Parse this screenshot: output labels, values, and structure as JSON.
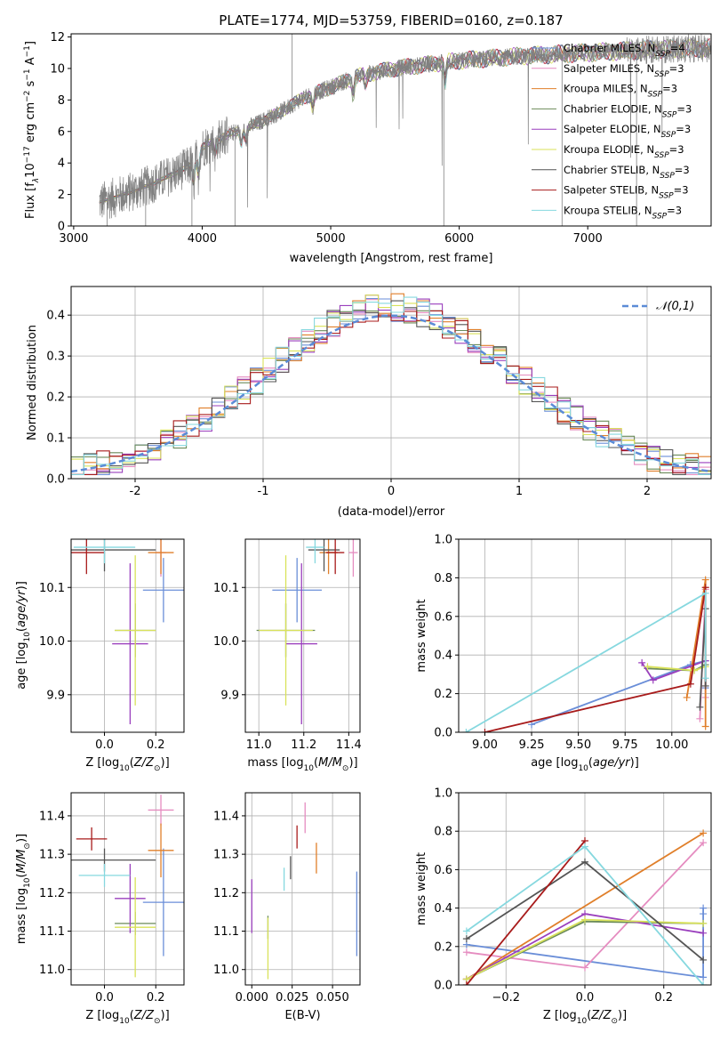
{
  "figure_title": "PLATE=1774, MJD=53759, FIBERID=0160, z=0.187",
  "colors": {
    "Chabrier MILES": "#6a8ed8",
    "Salpeter MILES": "#e58cc0",
    "Kroupa MILES": "#e07f2a",
    "Chabrier ELODIE": "#6b8b5a",
    "Salpeter ELODIE": "#9a3fbd",
    "Kroupa ELODIE": "#d9e25a",
    "Chabrier STELIB": "#555555",
    "Salpeter STELIB": "#a81b1b",
    "Kroupa STELIB": "#86d8df",
    "normal": "#5b8bd6"
  },
  "chart_data": [
    {
      "id": "spectrum",
      "type": "line",
      "title": "PLATE=1774, MJD=53759, FIBERID=0160, z=0.187",
      "xlabel": "wavelength [Angstrom, rest frame]",
      "ylabel": "Flux [fλ10⁻¹⁷ erg cm⁻² s⁻¹ A⁻¹]",
      "xlim": [
        2980,
        7960
      ],
      "ylim": [
        0,
        12.2
      ],
      "xticks": [
        3000,
        4000,
        5000,
        6000,
        7000
      ],
      "yticks": [
        0,
        2,
        4,
        6,
        8,
        10,
        12
      ],
      "legend": [
        "Chabrier MILES, N_SSP=4",
        "Salpeter MILES, N_SSP=3",
        "Kroupa MILES, N_SSP=3",
        "Chabrier ELODIE, N_SSP=3",
        "Salpeter ELODIE, N_SSP=3",
        "Kroupa ELODIE, N_SSP=3",
        "Chabrier STELIB, N_SSP=3",
        "Salpeter STELIB, N_SSP=3",
        "Kroupa STELIB, N_SSP=3"
      ],
      "legend_position": "upper-right",
      "x_range_data": [
        3200,
        7960
      ],
      "continuum": {
        "x": [
          3200,
          3500,
          3700,
          3900,
          4000,
          4200,
          4400,
          4600,
          4800,
          5000,
          5200,
          5500,
          6000,
          6500,
          7000,
          7500,
          7960
        ],
        "y": [
          1.5,
          2.3,
          3.0,
          3.8,
          5.0,
          5.8,
          6.4,
          7.2,
          8.2,
          8.8,
          9.5,
          10.0,
          10.5,
          10.8,
          11.0,
          11.2,
          11.3
        ]
      }
    },
    {
      "id": "residuals",
      "type": "histogram",
      "xlabel": "(data-model)/error",
      "ylabel": "Normed distribution",
      "xlim": [
        -2.5,
        2.5
      ],
      "ylim": [
        0,
        0.47
      ],
      "xticks": [
        -2,
        -1,
        0,
        1,
        2
      ],
      "yticks": [
        0.0,
        0.1,
        0.2,
        0.3,
        0.4
      ],
      "bin_width": 0.1,
      "reference": {
        "name": "𝒩(0,1)",
        "type": "gaussian",
        "mean": 0,
        "sigma": 1
      },
      "legend_position": "upper-right",
      "grid": true
    },
    {
      "id": "age-vs-z",
      "type": "scatter",
      "xlabel": "Z [log10(Z/Z⊙)]",
      "ylabel": "age [log10(age/yr)]",
      "xlim": [
        -0.13,
        0.31
      ],
      "ylim": [
        9.83,
        10.19
      ],
      "xticks": [
        0.0,
        0.2
      ],
      "yticks": [
        9.9,
        10.0,
        10.1
      ],
      "points": [
        {
          "model": "Chabrier MILES",
          "x": 0.23,
          "y": 10.095,
          "xerr": 0.08,
          "yerr": 0.06
        },
        {
          "model": "Salpeter MILES",
          "x": 0.22,
          "y": 10.165,
          "xerr": 0.02,
          "yerr": 0.045
        },
        {
          "model": "Kroupa MILES",
          "x": 0.22,
          "y": 10.165,
          "xerr": 0.05,
          "yerr": 0.04
        },
        {
          "model": "Chabrier ELODIE",
          "x": 0.12,
          "y": 10.02,
          "xerr": 0.08,
          "yerr": 0.05
        },
        {
          "model": "Salpeter ELODIE",
          "x": 0.1,
          "y": 9.995,
          "xerr": 0.07,
          "yerr": 0.15
        },
        {
          "model": "Kroupa ELODIE",
          "x": 0.12,
          "y": 10.02,
          "xerr": 0.08,
          "yerr": 0.14
        },
        {
          "model": "Chabrier STELIB",
          "x": 0.0,
          "y": 10.17,
          "xerr": 0.2,
          "yerr": 0.04
        },
        {
          "model": "Salpeter STELIB",
          "x": -0.07,
          "y": 10.165,
          "xerr": 0.07,
          "yerr": 0.04
        },
        {
          "model": "Kroupa STELIB",
          "x": 0.0,
          "y": 10.175,
          "xerr": 0.12,
          "yerr": 0.03
        }
      ]
    },
    {
      "id": "age-vs-mass",
      "type": "scatter",
      "xlabel": "mass [log10(M/M⊙)]",
      "ylabel": "",
      "xlim": [
        10.94,
        11.45
      ],
      "ylim": [
        9.83,
        10.19
      ],
      "xticks": [
        11.0,
        11.2,
        11.4
      ],
      "yticks": [
        9.9,
        10.0,
        10.1
      ],
      "points": [
        {
          "model": "Chabrier MILES",
          "x": 11.17,
          "y": 10.095,
          "xerr": 0.11,
          "yerr": 0.06
        },
        {
          "model": "Salpeter MILES",
          "x": 11.42,
          "y": 10.165,
          "xerr": 0.02,
          "yerr": 0.045
        },
        {
          "model": "Kroupa MILES",
          "x": 11.31,
          "y": 10.165,
          "xerr": 0.04,
          "yerr": 0.04
        },
        {
          "model": "Chabrier ELODIE",
          "x": 11.12,
          "y": 10.02,
          "xerr": 0.13,
          "yerr": 0.05
        },
        {
          "model": "Salpeter ELODIE",
          "x": 11.19,
          "y": 9.995,
          "xerr": 0.07,
          "yerr": 0.15
        },
        {
          "model": "Kroupa ELODIE",
          "x": 11.12,
          "y": 10.02,
          "xerr": 0.12,
          "yerr": 0.14
        },
        {
          "model": "Chabrier STELIB",
          "x": 11.29,
          "y": 10.17,
          "xerr": 0.07,
          "yerr": 0.04
        },
        {
          "model": "Salpeter STELIB",
          "x": 11.34,
          "y": 10.165,
          "xerr": 0.04,
          "yerr": 0.04
        },
        {
          "model": "Kroupa STELIB",
          "x": 11.25,
          "y": 10.175,
          "xerr": 0.04,
          "yerr": 0.03
        }
      ]
    },
    {
      "id": "weight-vs-age",
      "type": "line",
      "xlabel": "age [log10(age/yr)]",
      "ylabel": "mass weight",
      "xlim": [
        8.86,
        10.21
      ],
      "ylim": [
        0,
        1.0
      ],
      "xticks": [
        9.0,
        9.25,
        9.5,
        9.75,
        10.0
      ],
      "yticks": [
        0.0,
        0.2,
        0.4,
        0.6,
        0.8,
        1.0
      ],
      "series": [
        {
          "model": "Chabrier MILES",
          "x": [
            9.25,
            10.1,
            10.18,
            10.18
          ],
          "y": [
            0.04,
            0.35,
            0.37,
            0.23
          ]
        },
        {
          "model": "Salpeter MILES",
          "x": [
            10.15,
            10.18,
            10.18
          ],
          "y": [
            0.07,
            0.74,
            0.18
          ]
        },
        {
          "model": "Kroupa MILES",
          "x": [
            10.08,
            10.18,
            10.18
          ],
          "y": [
            0.18,
            0.79,
            0.03
          ]
        },
        {
          "model": "Chabrier ELODIE",
          "x": [
            9.87,
            10.12,
            10.18
          ],
          "y": [
            0.33,
            0.32,
            0.35
          ]
        },
        {
          "model": "Salpeter ELODIE",
          "x": [
            9.84,
            9.9,
            10.18
          ],
          "y": [
            0.36,
            0.27,
            0.37
          ]
        },
        {
          "model": "Kroupa ELODIE",
          "x": [
            9.87,
            10.12,
            10.18
          ],
          "y": [
            0.34,
            0.32,
            0.34
          ]
        },
        {
          "model": "Chabrier STELIB",
          "x": [
            10.15,
            10.18,
            10.18
          ],
          "y": [
            0.13,
            0.64,
            0.24
          ]
        },
        {
          "model": "Salpeter STELIB",
          "x": [
            9.0,
            10.1,
            10.18
          ],
          "y": [
            0.0,
            0.25,
            0.75
          ]
        },
        {
          "model": "Kroupa STELIB",
          "x": [
            8.9,
            10.18,
            10.18
          ],
          "y": [
            0.0,
            0.72,
            0.28
          ]
        }
      ]
    },
    {
      "id": "mass-vs-z",
      "type": "scatter",
      "xlabel": "Z [log10(Z/Z⊙)]",
      "ylabel": "mass [log10(M/M⊙)]",
      "xlim": [
        -0.13,
        0.31
      ],
      "ylim": [
        10.96,
        11.46
      ],
      "xticks": [
        0.0,
        0.2
      ],
      "yticks": [
        11.0,
        11.1,
        11.2,
        11.3,
        11.4
      ],
      "points": [
        {
          "model": "Chabrier MILES",
          "x": 0.23,
          "y": 11.175,
          "xerr": 0.08,
          "yerr": 0.14
        },
        {
          "model": "Salpeter MILES",
          "x": 0.22,
          "y": 11.415,
          "xerr": 0.05,
          "yerr": 0.04
        },
        {
          "model": "Kroupa MILES",
          "x": 0.22,
          "y": 11.31,
          "xerr": 0.05,
          "yerr": 0.07
        },
        {
          "model": "Chabrier ELODIE",
          "x": 0.12,
          "y": 11.12,
          "xerr": 0.08,
          "yerr": 0.03
        },
        {
          "model": "Salpeter ELODIE",
          "x": 0.1,
          "y": 11.185,
          "xerr": 0.06,
          "yerr": 0.09
        },
        {
          "model": "Kroupa ELODIE",
          "x": 0.12,
          "y": 11.11,
          "xerr": 0.08,
          "yerr": 0.13
        },
        {
          "model": "Chabrier STELIB",
          "x": 0.0,
          "y": 11.285,
          "xerr": 0.2,
          "yerr": 0.03
        },
        {
          "model": "Salpeter STELIB",
          "x": -0.05,
          "y": 11.34,
          "xerr": 0.06,
          "yerr": 0.03
        },
        {
          "model": "Kroupa STELIB",
          "x": 0.0,
          "y": 11.245,
          "xerr": 0.1,
          "yerr": 0.03
        }
      ]
    },
    {
      "id": "mass-vs-ebv",
      "type": "scatter",
      "xlabel": "E(B-V)",
      "ylabel": "",
      "xlim": [
        -0.004,
        0.067
      ],
      "ylim": [
        10.96,
        11.46
      ],
      "xticks": [
        0.0,
        0.025,
        0.05
      ],
      "tick_labels": [
        "0.000",
        "0.025",
        "0.050"
      ],
      "yticks": [
        11.0,
        11.1,
        11.2,
        11.3,
        11.4
      ],
      "points": [
        {
          "model": "Chabrier MILES",
          "x": 0.065,
          "y": 11.145,
          "xerr": 0,
          "yerr": 0.11
        },
        {
          "model": "Salpeter MILES",
          "x": 0.033,
          "y": 11.395,
          "xerr": 0,
          "yerr": 0.04
        },
        {
          "model": "Kroupa MILES",
          "x": 0.04,
          "y": 11.29,
          "xerr": 0,
          "yerr": 0.04
        },
        {
          "model": "Chabrier ELODIE",
          "x": 0.01,
          "y": 11.11,
          "xerr": 0,
          "yerr": 0.03
        },
        {
          "model": "Salpeter ELODIE",
          "x": 0.0,
          "y": 11.165,
          "xerr": 0,
          "yerr": 0.07
        },
        {
          "model": "Kroupa ELODIE",
          "x": 0.01,
          "y": 11.055,
          "xerr": 0,
          "yerr": 0.08
        },
        {
          "model": "Chabrier STELIB",
          "x": 0.024,
          "y": 11.265,
          "xerr": 0,
          "yerr": 0.03
        },
        {
          "model": "Salpeter STELIB",
          "x": 0.028,
          "y": 11.345,
          "xerr": 0,
          "yerr": 0.03
        },
        {
          "model": "Kroupa STELIB",
          "x": 0.02,
          "y": 11.235,
          "xerr": 0,
          "yerr": 0.03
        }
      ]
    },
    {
      "id": "weight-vs-z",
      "type": "line",
      "xlabel": "Z [log10(Z/Z⊙)]",
      "ylabel": "mass weight",
      "xlim": [
        -0.32,
        0.32
      ],
      "ylim": [
        0,
        1.0
      ],
      "xticks": [
        -0.2,
        0.0,
        0.2
      ],
      "yticks": [
        0.0,
        0.2,
        0.4,
        0.6,
        0.8,
        1.0
      ],
      "series": [
        {
          "model": "Chabrier MILES",
          "x": [
            -0.3,
            0.3,
            0.3,
            0.3
          ],
          "y": [
            0.21,
            0.04,
            0.4,
            0.37
          ]
        },
        {
          "model": "Salpeter MILES",
          "x": [
            -0.3,
            0.0,
            0.3
          ],
          "y": [
            0.17,
            0.09,
            0.74
          ]
        },
        {
          "model": "Kroupa MILES",
          "x": [
            -0.3,
            0.3
          ],
          "y": [
            0.03,
            0.79
          ]
        },
        {
          "model": "Chabrier ELODIE",
          "x": [
            -0.3,
            0.0,
            0.3
          ],
          "y": [
            0.03,
            0.33,
            0.32
          ]
        },
        {
          "model": "Salpeter ELODIE",
          "x": [
            -0.3,
            0.0,
            0.3
          ],
          "y": [
            0.03,
            0.37,
            0.27
          ]
        },
        {
          "model": "Kroupa ELODIE",
          "x": [
            -0.3,
            0.0,
            0.3
          ],
          "y": [
            0.03,
            0.34,
            0.32
          ]
        },
        {
          "model": "Chabrier STELIB",
          "x": [
            -0.3,
            0.0,
            0.3
          ],
          "y": [
            0.24,
            0.64,
            0.13
          ]
        },
        {
          "model": "Salpeter STELIB",
          "x": [
            -0.3,
            0.0
          ],
          "y": [
            0.0,
            0.75
          ]
        },
        {
          "model": "Kroupa STELIB",
          "x": [
            -0.3,
            0.0,
            0.3
          ],
          "y": [
            0.28,
            0.72,
            0.0
          ]
        }
      ]
    }
  ]
}
